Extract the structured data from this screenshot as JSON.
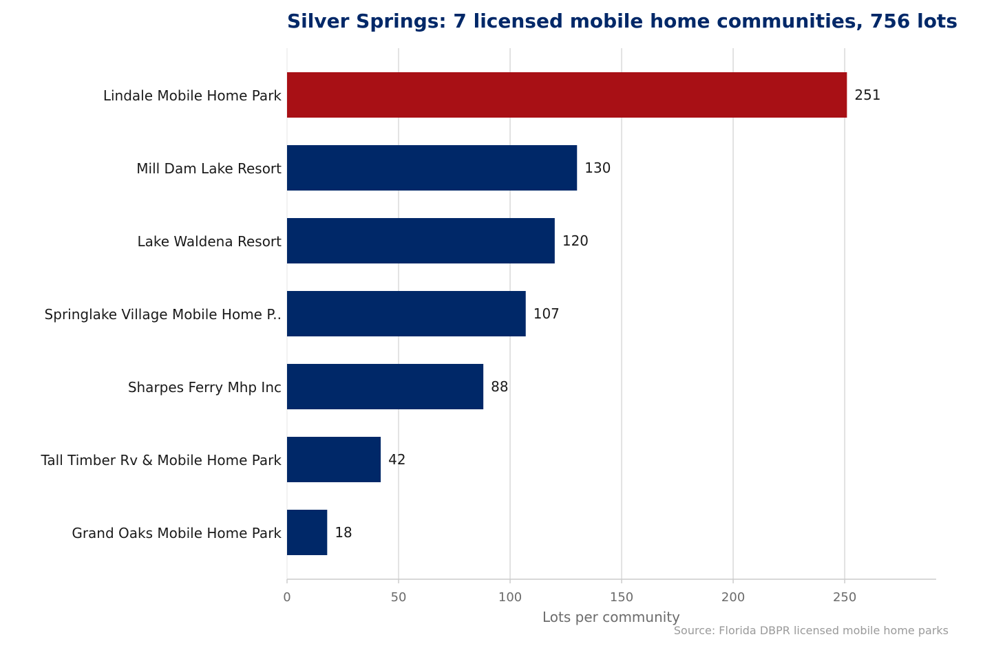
{
  "chart_data": {
    "type": "bar",
    "orientation": "horizontal",
    "title": "Silver Springs: 7 licensed mobile home communities, 756 lots",
    "xlabel": "Lots per community",
    "ylabel": "",
    "source": "Source: Florida DBPR licensed mobile home parks",
    "categories": [
      "Lindale Mobile Home Park",
      "Mill Dam Lake Resort",
      "Lake Waldena Resort",
      "Springlake Village Mobile Home P..",
      "Sharpes Ferry Mhp Inc",
      "Tall Timber Rv & Mobile Home Park",
      "Grand Oaks Mobile Home Park"
    ],
    "values": [
      251,
      130,
      120,
      107,
      88,
      42,
      18
    ],
    "value_labels": [
      "251",
      "130",
      "120",
      "107",
      "88",
      "42",
      "18"
    ],
    "highlight_index": 0,
    "xlim": [
      0,
      291
    ],
    "xticks": [
      0,
      50,
      100,
      150,
      200,
      250
    ],
    "xtick_labels": [
      "0",
      "50",
      "100",
      "150",
      "200",
      "250"
    ],
    "grid": true,
    "legend": "none",
    "colors": {
      "highlight": "#A81015",
      "bar": "#002868",
      "title": "#002868",
      "grid": "#d9d9d9",
      "axis": "#cccccc"
    }
  }
}
